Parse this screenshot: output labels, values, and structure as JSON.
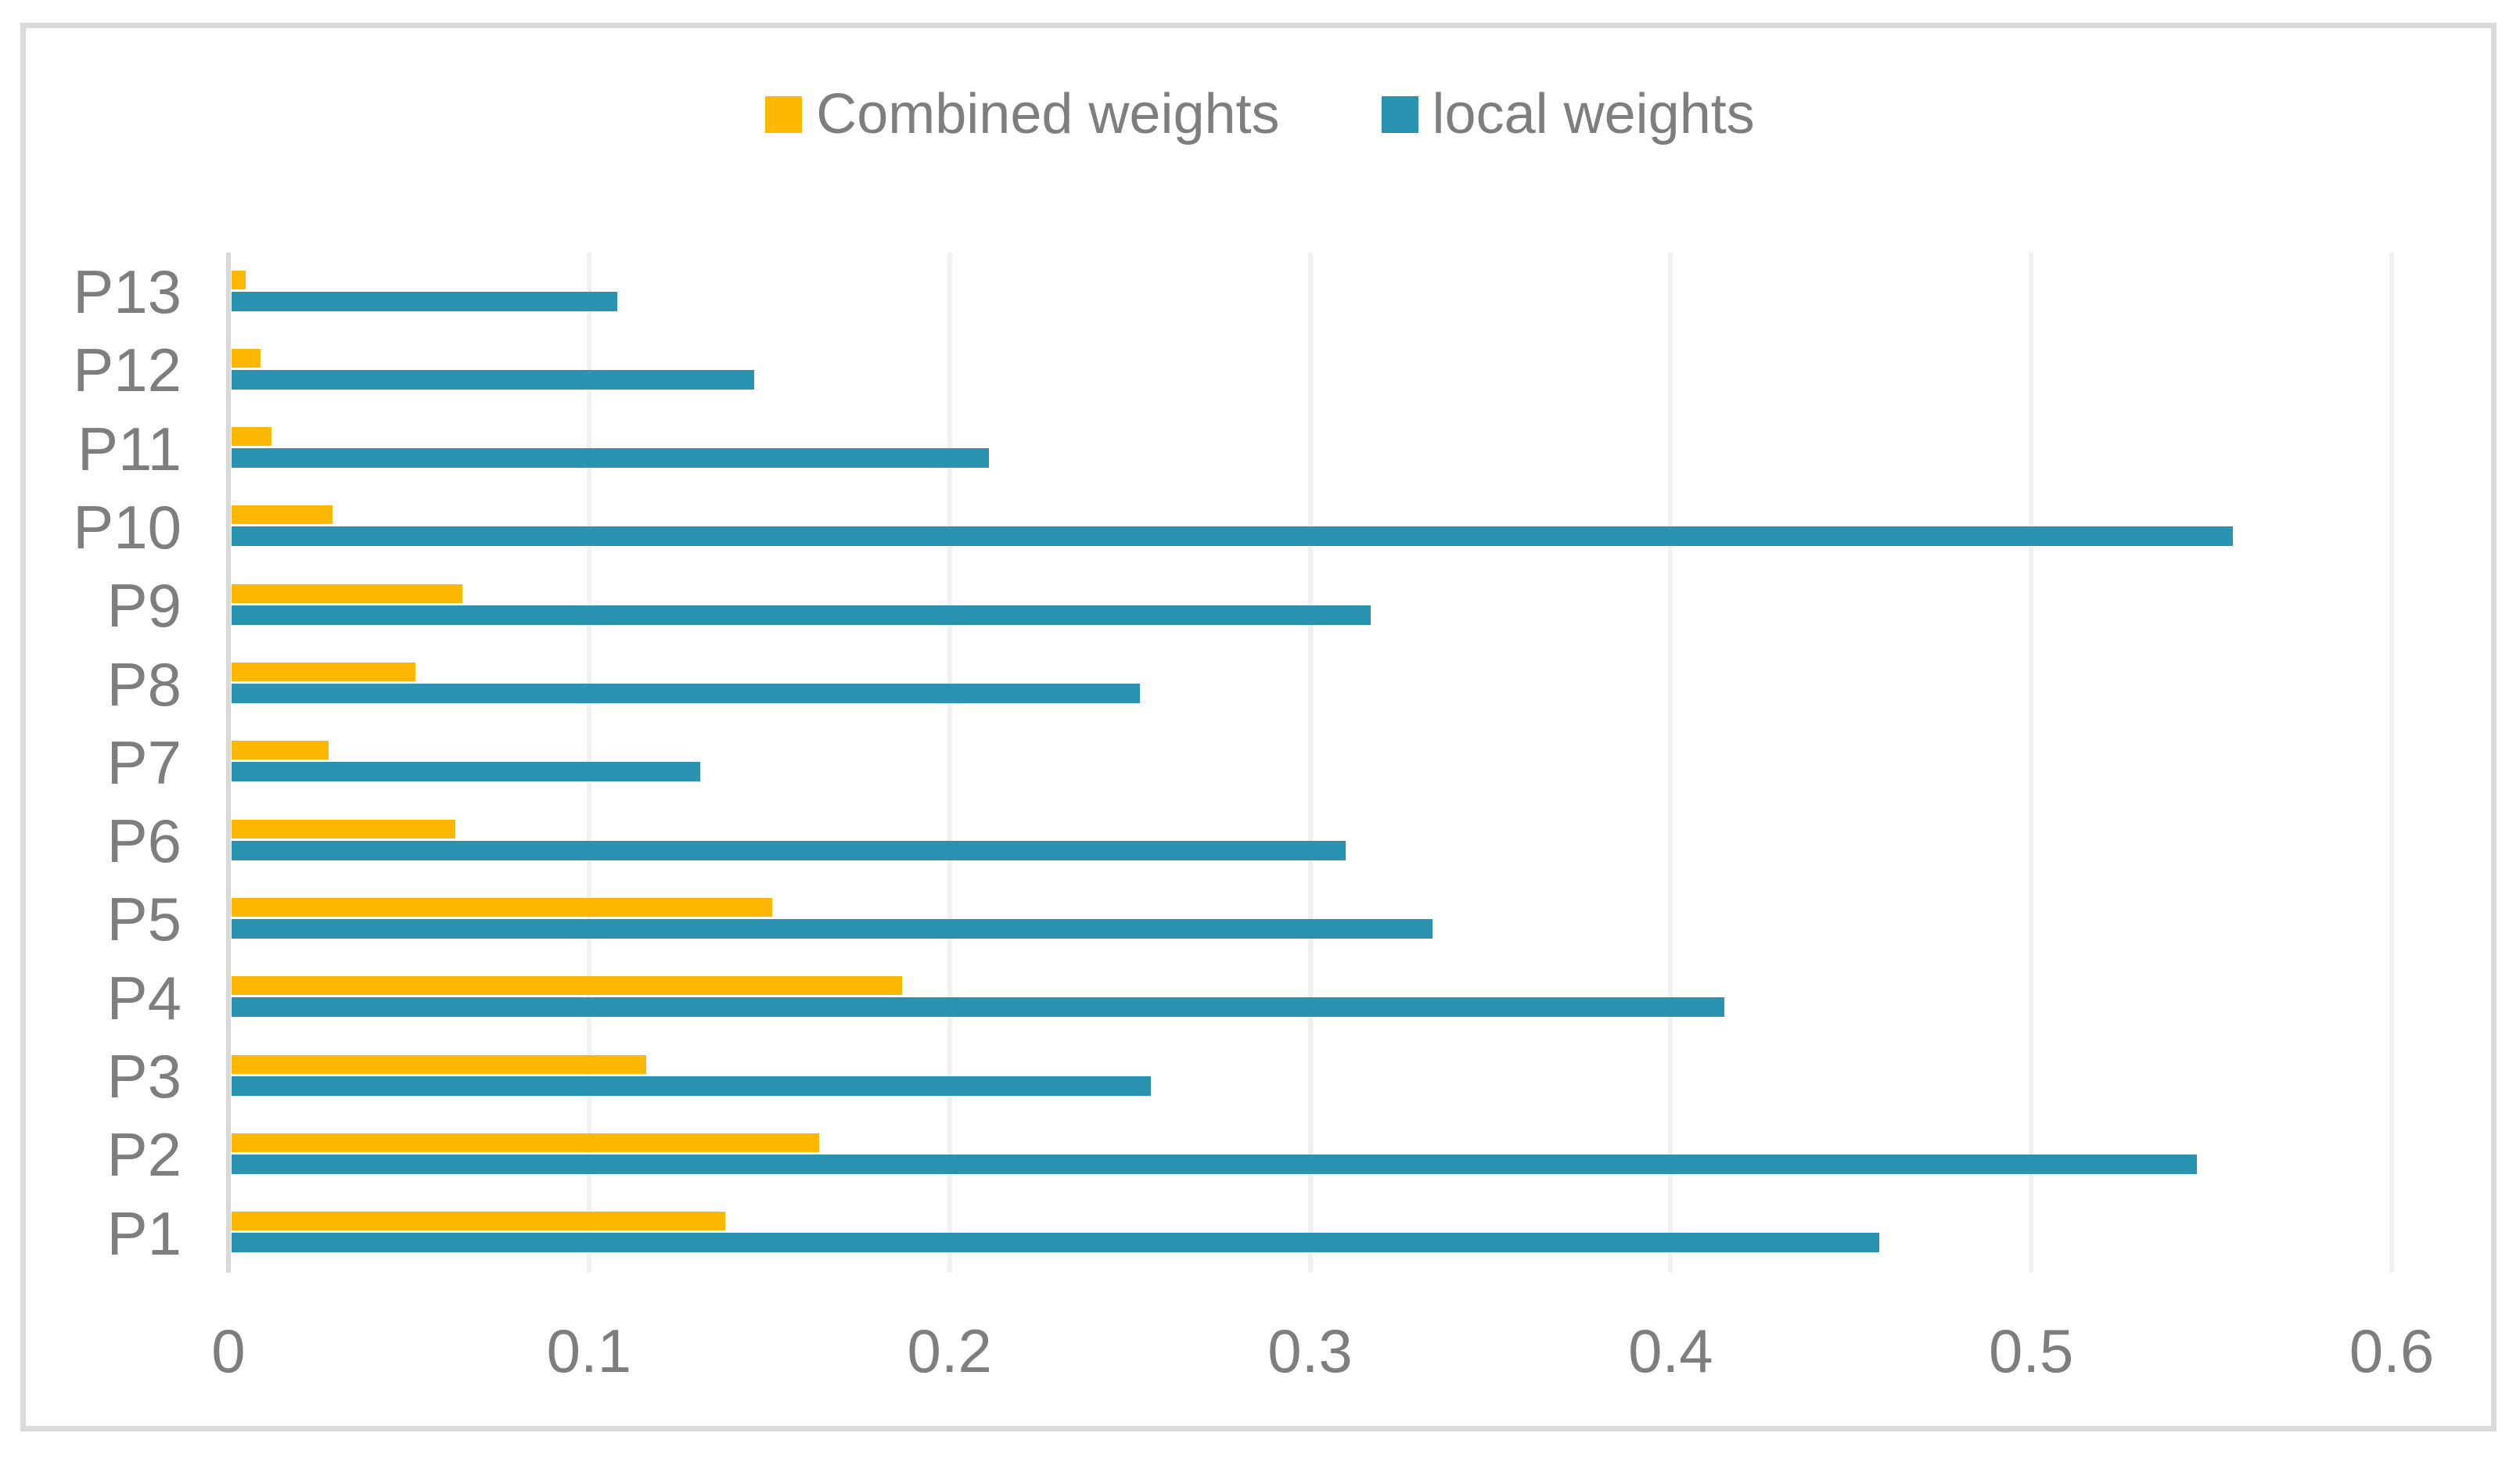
{
  "chart_data": {
    "type": "bar",
    "orientation": "horizontal",
    "title": "",
    "categories_top_to_bottom": [
      "P13",
      "P12",
      "P11",
      "P10",
      "P9",
      "P8",
      "P7",
      "P6",
      "P5",
      "P4",
      "P3",
      "P2",
      "P1"
    ],
    "series": [
      {
        "name": "Combined weights",
        "color": "#FEB800",
        "values_top_to_bottom": [
          0.004,
          0.008,
          0.011,
          0.028,
          0.064,
          0.051,
          0.027,
          0.062,
          0.15,
          0.186,
          0.115,
          0.163,
          0.137
        ]
      },
      {
        "name": "local weights",
        "color": "#2A93B1",
        "values_top_to_bottom": [
          0.107,
          0.145,
          0.21,
          0.555,
          0.316,
          0.252,
          0.13,
          0.309,
          0.333,
          0.414,
          0.255,
          0.545,
          0.457
        ]
      }
    ],
    "xlabel": "",
    "ylabel": "",
    "x_axis": {
      "min": 0,
      "max": 0.6,
      "tick_values": [
        0,
        0.1,
        0.2,
        0.3,
        0.4,
        0.5,
        0.6
      ],
      "tick_labels": [
        "0",
        "0.1",
        "0.2",
        "0.3",
        "0.4",
        "0.5",
        "0.6"
      ]
    },
    "grid": "vertical-gridlines-on",
    "legend_position": "top-center",
    "bar_order_within_category": [
      "Combined weights",
      "local weights"
    ]
  },
  "legend": {
    "items": [
      {
        "label": "Combined weights",
        "color": "#FEB800"
      },
      {
        "label": "local weights",
        "color": "#2A93B1"
      }
    ]
  },
  "styles": {
    "text_color": "#7E7E7E",
    "gridline_color": "#F1F1F1",
    "axis_line_color": "#D9D9D9",
    "frame_border_color": "#DADADA",
    "background": "#FFFFFF"
  }
}
